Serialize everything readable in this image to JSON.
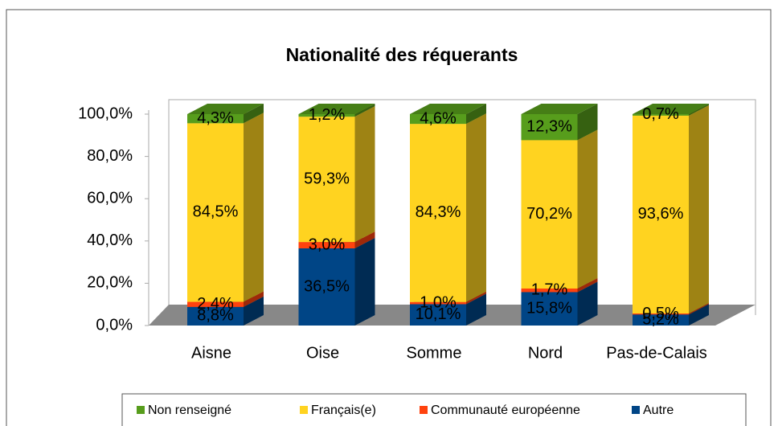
{
  "chart_data": {
    "type": "bar3d_stacked",
    "title": "Nationalité des réquerants",
    "categories": [
      "Aisne",
      "Oise",
      "Somme",
      "Nord",
      "Pas-de-Calais"
    ],
    "series": [
      {
        "name": "Non renseigné",
        "color": "#579d1c",
        "values": [
          4.3,
          1.2,
          4.6,
          12.3,
          0.7
        ],
        "value_labels": [
          "4,3%",
          "1,2%",
          "4,6%",
          "12,3%",
          "0,7%"
        ]
      },
      {
        "name": "Français(e)",
        "color": "#ffd320",
        "values": [
          84.5,
          59.3,
          84.3,
          70.2,
          93.6
        ],
        "value_labels": [
          "84,5%",
          "59,3%",
          "84,3%",
          "70,2%",
          "93,6%"
        ]
      },
      {
        "name": "Communauté européenne",
        "color": "#ff420e",
        "values": [
          2.4,
          3.0,
          1.0,
          1.7,
          0.5
        ],
        "value_labels": [
          "2,4%",
          "3,0%",
          "1,0%",
          "1,7%",
          "0,5%"
        ]
      },
      {
        "name": "Autre",
        "color": "#004586",
        "values": [
          8.8,
          36.5,
          10.1,
          15.8,
          5.2
        ],
        "value_labels": [
          "8,8%",
          "36,5%",
          "10,1%",
          "15,8%",
          "5,2%"
        ]
      }
    ],
    "ylim": [
      0,
      100
    ],
    "yticks": [
      {
        "value": 0,
        "label": "0,0%"
      },
      {
        "value": 20,
        "label": "20,0%"
      },
      {
        "value": 40,
        "label": "40,0%"
      },
      {
        "value": 60,
        "label": "60,0%"
      },
      {
        "value": 80,
        "label": "80,0%"
      },
      {
        "value": 100,
        "label": "100,0%"
      }
    ],
    "legend": "bottom"
  }
}
